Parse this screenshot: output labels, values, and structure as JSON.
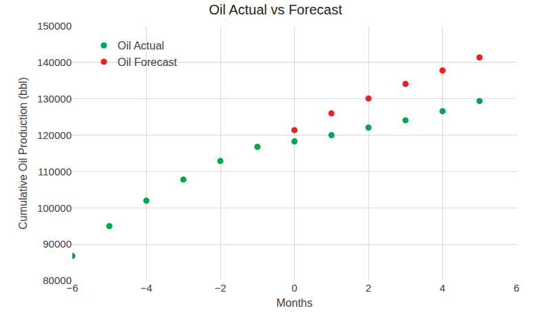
{
  "chart_data": {
    "type": "scatter",
    "title": "Oil Actual vs Forecast",
    "x_label": "Months",
    "y_label": "Cumulative Oil Production (bbl)",
    "series": [
      {
        "name": "Oil Actual",
        "color": "#00a550",
        "marker": "circle",
        "x": [
          -6,
          -5,
          -4,
          -3,
          -2,
          -1,
          0,
          1,
          2,
          3,
          4,
          5
        ],
        "values": [
          86800,
          95000,
          102000,
          107800,
          112900,
          116800,
          118300,
          120000,
          122100,
          124100,
          126600,
          129400
        ]
      },
      {
        "name": "Oil Forecast",
        "color": "#e8231f",
        "marker": "circle",
        "x": [
          0,
          1,
          2,
          3,
          4,
          5
        ],
        "values": [
          121400,
          126000,
          130100,
          134100,
          137800,
          141400
        ]
      }
    ],
    "xlim": [
      -6,
      6
    ],
    "xticks": [
      {
        "value": -6,
        "label": "−6"
      },
      {
        "value": -4,
        "label": "−4"
      },
      {
        "value": -2,
        "label": "−2"
      },
      0,
      2,
      4,
      6
    ],
    "ylim": [
      80000,
      150000
    ],
    "yticks": [
      80000,
      90000,
      100000,
      110000,
      120000,
      130000,
      140000,
      150000
    ],
    "grid": true,
    "legend": "upper left"
  }
}
